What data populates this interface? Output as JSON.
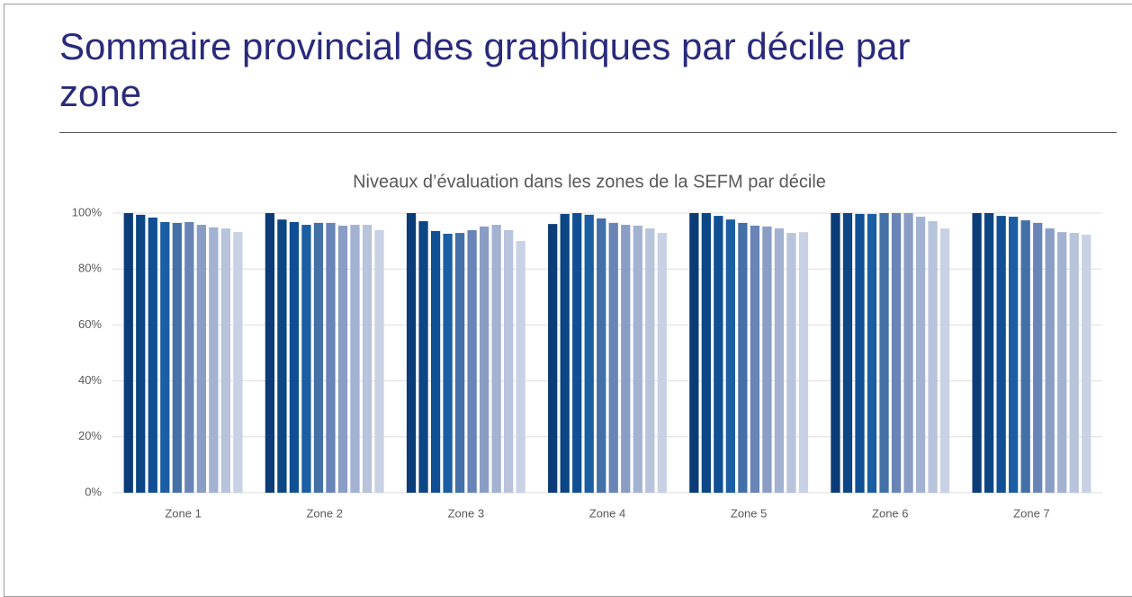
{
  "page_title": "Sommaire provincial des graphiques par décile par zone",
  "chart_data": {
    "type": "bar",
    "title": "Niveaux d’évaluation dans les zones de la SEFM par décile",
    "categories": [
      "Zone 1",
      "Zone 2",
      "Zone 3",
      "Zone 4",
      "Zone 5",
      "Zone 6",
      "Zone 7"
    ],
    "series": [
      {
        "color": "#0b3c78",
        "values": [
          100,
          100,
          100,
          96.1,
          100,
          100,
          100
        ]
      },
      {
        "color": "#0d4685",
        "values": [
          99.4,
          97.7,
          97.1,
          99.7,
          100,
          100,
          100
        ]
      },
      {
        "color": "#104f93",
        "values": [
          98.4,
          96.8,
          93.6,
          100,
          99,
          99.7,
          99
        ]
      },
      {
        "color": "#1c5ea4",
        "values": [
          96.8,
          95.8,
          92.6,
          99.4,
          97.7,
          99.7,
          98.7
        ]
      },
      {
        "color": "#4470a8",
        "values": [
          96.5,
          96.5,
          92.9,
          98.1,
          96.5,
          100,
          97.4
        ]
      },
      {
        "color": "#6984b6",
        "values": [
          96.8,
          96.5,
          93.9,
          96.5,
          95.5,
          100,
          96.5
        ]
      },
      {
        "color": "#8a9dc4",
        "values": [
          95.8,
          95.5,
          95.2,
          95.8,
          95.2,
          100,
          94.5
        ]
      },
      {
        "color": "#a3b2d1",
        "values": [
          94.9,
          95.8,
          95.8,
          95.5,
          94.5,
          98.7,
          93.2
        ]
      },
      {
        "color": "#b8c3dc",
        "values": [
          94.5,
          95.8,
          93.9,
          94.5,
          92.9,
          97.1,
          92.9
        ]
      },
      {
        "color": "#c9d1e4",
        "values": [
          93.2,
          93.9,
          90,
          92.9,
          93.2,
          94.5,
          92.3
        ]
      }
    ],
    "ylim": [
      0,
      100
    ],
    "yticks": [
      {
        "value": 0,
        "label": "0%"
      },
      {
        "value": 20,
        "label": "20%"
      },
      {
        "value": 40,
        "label": "40%"
      },
      {
        "value": 60,
        "label": "60%"
      },
      {
        "value": 80,
        "label": "80%"
      },
      {
        "value": 100,
        "label": "100%"
      }
    ],
    "grid": true
  }
}
